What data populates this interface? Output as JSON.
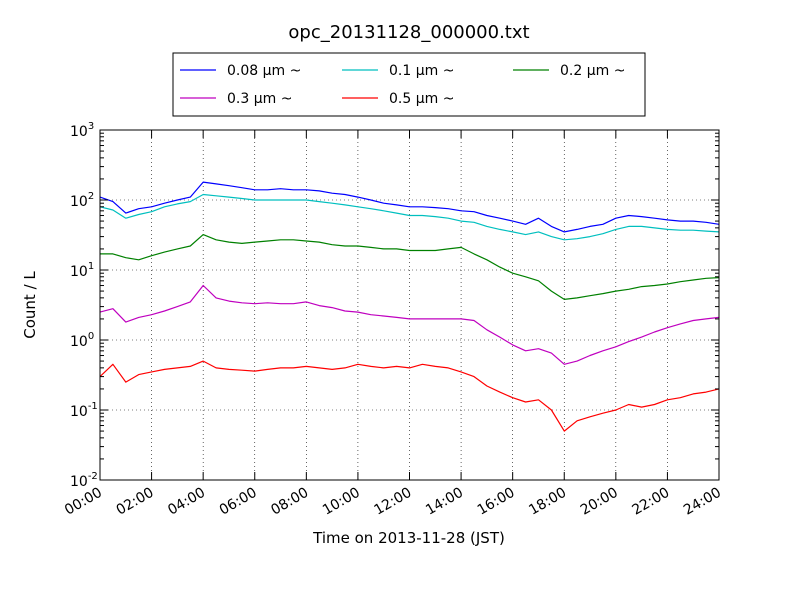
{
  "chart_data": {
    "type": "line",
    "title": "opc_20131128_000000.txt",
    "xlabel": "Time on 2013-11-28 (JST)",
    "ylabel": "Count / L",
    "x_range": [
      "00:00",
      "24:00"
    ],
    "y_scale": "log",
    "ylim": [
      0.01,
      1000
    ],
    "y_ticks": [
      {
        "base": "10",
        "exp": "-2"
      },
      {
        "base": "10",
        "exp": "-1"
      },
      {
        "base": "10",
        "exp": "0"
      },
      {
        "base": "10",
        "exp": "1"
      },
      {
        "base": "10",
        "exp": "2"
      },
      {
        "base": "10",
        "exp": "3"
      }
    ],
    "x_tick_labels": [
      "00:00",
      "02:00",
      "04:00",
      "06:00",
      "08:00",
      "10:00",
      "12:00",
      "14:00",
      "16:00",
      "18:00",
      "20:00",
      "22:00",
      "24:00"
    ],
    "grid": true,
    "legend_position": "top-center",
    "x": [
      "00:00",
      "00:30",
      "01:00",
      "01:30",
      "02:00",
      "02:30",
      "03:00",
      "03:30",
      "04:00",
      "04:30",
      "05:00",
      "05:30",
      "06:00",
      "06:30",
      "07:00",
      "07:30",
      "08:00",
      "08:30",
      "09:00",
      "09:30",
      "10:00",
      "10:30",
      "11:00",
      "11:30",
      "12:00",
      "12:30",
      "13:00",
      "13:30",
      "14:00",
      "14:30",
      "15:00",
      "15:30",
      "16:00",
      "16:30",
      "17:00",
      "17:30",
      "18:00",
      "18:30",
      "19:00",
      "19:30",
      "20:00",
      "20:30",
      "21:00",
      "21:30",
      "22:00",
      "22:30",
      "23:00",
      "23:30",
      "24:00"
    ],
    "series": [
      {
        "name": "0.08 μm ~",
        "color": "#0000ff",
        "values": [
          110,
          95,
          65,
          75,
          80,
          90,
          100,
          110,
          180,
          170,
          160,
          150,
          140,
          140,
          145,
          140,
          140,
          135,
          125,
          120,
          110,
          100,
          90,
          85,
          80,
          80,
          78,
          75,
          70,
          68,
          60,
          55,
          50,
          45,
          55,
          42,
          35,
          38,
          42,
          45,
          55,
          60,
          58,
          55,
          52,
          50,
          50,
          48,
          45
        ]
      },
      {
        "name": "0.1 μm ~",
        "color": "#00bfbf",
        "values": [
          80,
          72,
          55,
          62,
          68,
          80,
          88,
          95,
          120,
          115,
          110,
          105,
          100,
          100,
          100,
          100,
          100,
          95,
          90,
          85,
          80,
          75,
          70,
          65,
          60,
          60,
          58,
          55,
          50,
          48,
          42,
          38,
          35,
          32,
          35,
          30,
          27,
          28,
          30,
          33,
          38,
          42,
          42,
          40,
          38,
          37,
          37,
          36,
          35
        ]
      },
      {
        "name": "0.2 μm ~",
        "color": "#008000",
        "values": [
          17,
          17,
          15,
          14,
          16,
          18,
          20,
          22,
          32,
          27,
          25,
          24,
          25,
          26,
          27,
          27,
          26,
          25,
          23,
          22,
          22,
          21,
          20,
          20,
          19,
          19,
          19,
          20,
          21,
          17,
          14,
          11,
          9,
          8,
          7,
          5,
          3.8,
          4,
          4.3,
          4.6,
          5,
          5.3,
          5.8,
          6,
          6.3,
          6.8,
          7.2,
          7.6,
          7.8
        ]
      },
      {
        "name": "0.3 μm ~",
        "color": "#bf00bf",
        "values": [
          2.5,
          2.8,
          1.8,
          2.1,
          2.3,
          2.6,
          3,
          3.5,
          6,
          4,
          3.6,
          3.4,
          3.3,
          3.4,
          3.3,
          3.3,
          3.5,
          3.1,
          2.9,
          2.6,
          2.5,
          2.3,
          2.2,
          2.1,
          2,
          2,
          2,
          2,
          2,
          1.9,
          1.4,
          1.1,
          0.85,
          0.7,
          0.75,
          0.65,
          0.45,
          0.5,
          0.6,
          0.7,
          0.8,
          0.95,
          1.1,
          1.3,
          1.5,
          1.7,
          1.9,
          2,
          2.1
        ]
      },
      {
        "name": "0.5 μm ~",
        "color": "#ff0000",
        "values": [
          0.3,
          0.45,
          0.25,
          0.32,
          0.35,
          0.38,
          0.4,
          0.42,
          0.5,
          0.4,
          0.38,
          0.37,
          0.36,
          0.38,
          0.4,
          0.4,
          0.42,
          0.4,
          0.38,
          0.4,
          0.45,
          0.42,
          0.4,
          0.42,
          0.4,
          0.45,
          0.42,
          0.4,
          0.35,
          0.3,
          0.22,
          0.18,
          0.15,
          0.13,
          0.14,
          0.1,
          0.05,
          0.07,
          0.08,
          0.09,
          0.1,
          0.12,
          0.11,
          0.12,
          0.14,
          0.15,
          0.17,
          0.18,
          0.2
        ]
      }
    ]
  }
}
